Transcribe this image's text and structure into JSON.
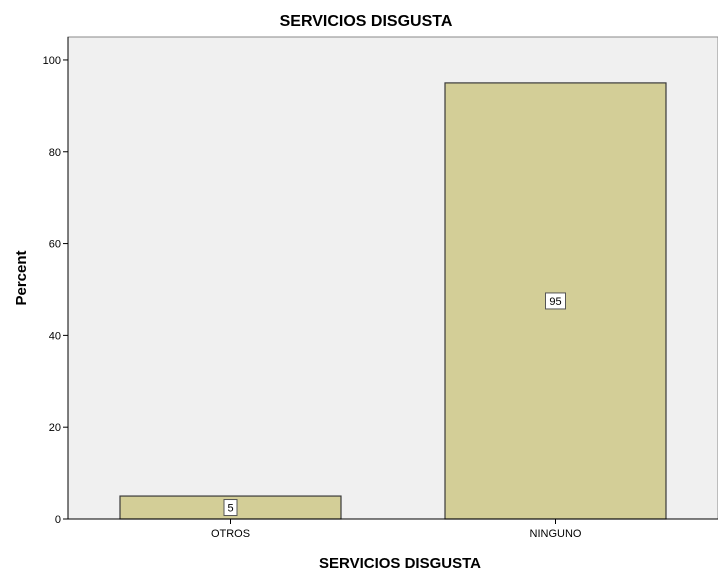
{
  "chart_data": {
    "type": "bar",
    "title": "SERVICIOS DISGUSTA",
    "xlabel": "SERVICIOS DISGUSTA",
    "ylabel": "Percent",
    "categories": [
      "OTROS",
      "NINGUNO"
    ],
    "values": [
      5,
      95
    ],
    "data_labels": [
      "5",
      "95"
    ],
    "ylim": [
      0,
      105
    ],
    "yticks": [
      0,
      20,
      40,
      60,
      80,
      100
    ],
    "grid": false,
    "colors": {
      "plot_background": "#f0f0f0",
      "bar_fill": "#d3ce97",
      "bar_stroke": "#3a3a3a",
      "label_box": "#ffffff"
    }
  }
}
